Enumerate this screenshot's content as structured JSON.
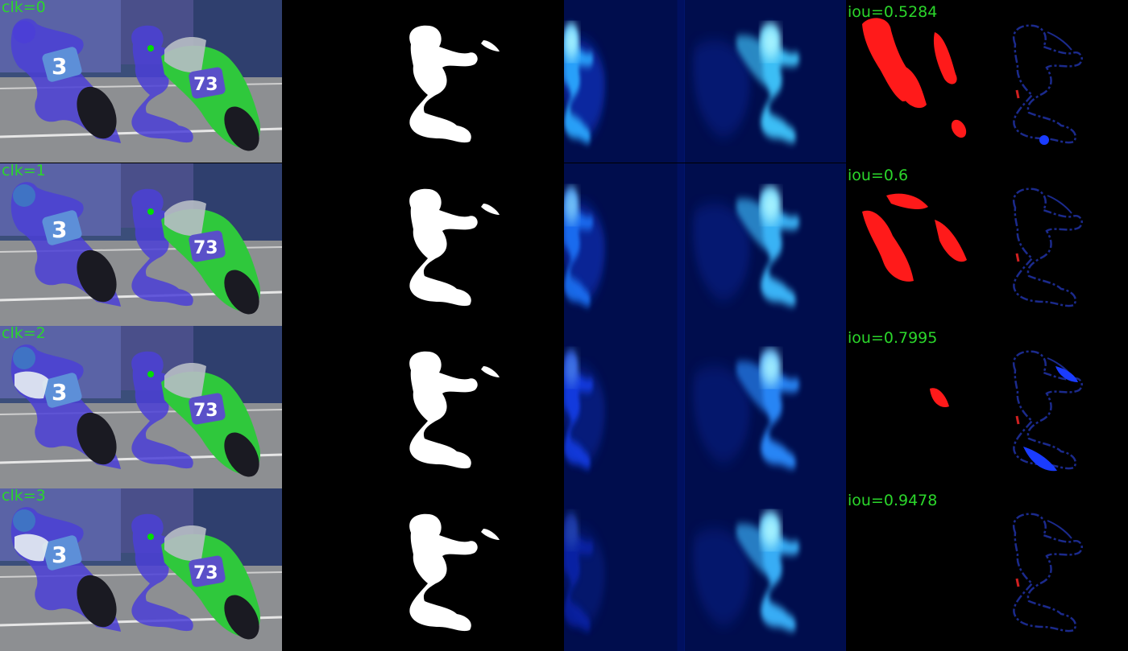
{
  "label_color": "#2bd62b",
  "rows": [
    {
      "click": "clk=0",
      "iou": "iou=0.5284"
    },
    {
      "click": "clk=1",
      "iou": "iou=0.6"
    },
    {
      "click": "clk=2",
      "iou": "iou=0.7995"
    },
    {
      "click": "clk=3",
      "iou": "iou=0.9478"
    }
  ],
  "bike_numbers": {
    "left": "3",
    "right": "73"
  },
  "colors": {
    "mask": "#ffffff",
    "false_negative": "#ff1a1a",
    "heatmap_high": "#a9f4ff",
    "heatmap_mid": "#1e7bff",
    "heatmap_low": "#001060",
    "overlay_blue": "#4b3fd6",
    "right_bike": "#2fc83c",
    "click_point": "#00e000"
  }
}
